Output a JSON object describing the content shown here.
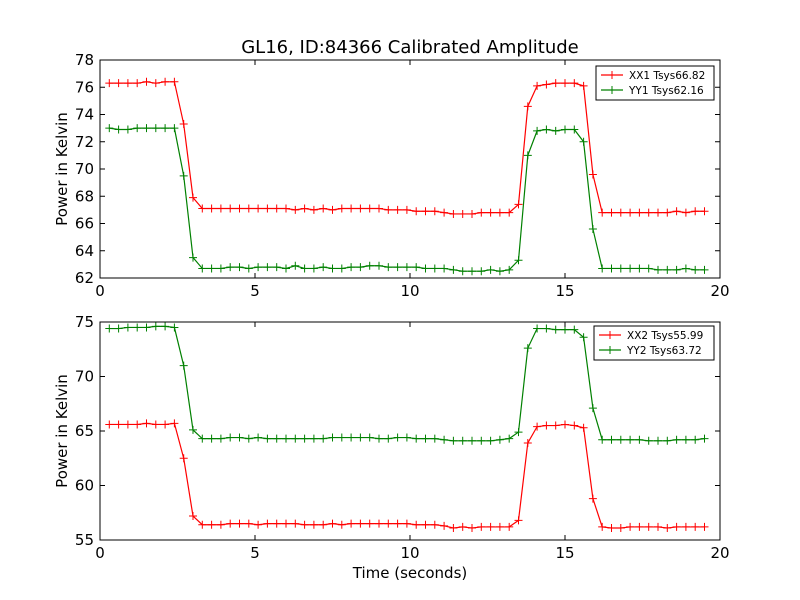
{
  "figure": {
    "title": "GL16, ID:84366 Calibrated Amplitude",
    "xlabel": "Time (seconds)"
  },
  "chart_data": [
    {
      "type": "line",
      "title": "GL16, ID:84366 Calibrated Amplitude",
      "xlabel": "",
      "ylabel": "Power in Kelvin",
      "xlim": [
        0,
        20
      ],
      "ylim": [
        62,
        78
      ],
      "xticks": [
        0,
        5,
        10,
        15,
        20
      ],
      "yticks": [
        62,
        64,
        66,
        68,
        70,
        72,
        74,
        76,
        78
      ],
      "legend_position": "top-right",
      "grid": false,
      "series": [
        {
          "name": "XX1 Tsys66.82",
          "color": "#ff0000",
          "x": [
            0.3,
            0.6,
            0.9,
            1.2,
            1.5,
            1.8,
            2.1,
            2.4,
            2.7,
            3.0,
            3.3,
            3.6,
            3.9,
            4.2,
            4.5,
            4.8,
            5.1,
            5.4,
            5.7,
            6.0,
            6.3,
            6.6,
            6.9,
            7.2,
            7.5,
            7.8,
            8.1,
            8.4,
            8.7,
            9.0,
            9.3,
            9.6,
            9.9,
            10.2,
            10.5,
            10.8,
            11.1,
            11.4,
            11.7,
            12.0,
            12.3,
            12.6,
            12.9,
            13.2,
            13.5,
            13.8,
            14.1,
            14.4,
            14.7,
            15.0,
            15.3,
            15.6,
            15.9,
            16.2,
            16.5,
            16.8,
            17.1,
            17.4,
            17.7,
            18.0,
            18.3,
            18.6,
            18.9,
            19.2,
            19.5
          ],
          "values": [
            76.3,
            76.3,
            76.3,
            76.3,
            76.4,
            76.3,
            76.4,
            76.4,
            73.3,
            67.9,
            67.1,
            67.1,
            67.1,
            67.1,
            67.1,
            67.1,
            67.1,
            67.1,
            67.1,
            67.1,
            67.0,
            67.1,
            67.0,
            67.1,
            67.0,
            67.1,
            67.1,
            67.1,
            67.1,
            67.1,
            67.0,
            67.0,
            67.0,
            66.9,
            66.9,
            66.9,
            66.8,
            66.7,
            66.7,
            66.7,
            66.8,
            66.8,
            66.8,
            66.8,
            67.4,
            74.6,
            76.1,
            76.2,
            76.3,
            76.3,
            76.3,
            76.1,
            69.6,
            66.8,
            66.8,
            66.8,
            66.8,
            66.8,
            66.8,
            66.8,
            66.8,
            66.9,
            66.8,
            66.9,
            66.9
          ]
        },
        {
          "name": "YY1 Tsys62.16",
          "color": "#008000",
          "x": [
            0.3,
            0.6,
            0.9,
            1.2,
            1.5,
            1.8,
            2.1,
            2.4,
            2.7,
            3.0,
            3.3,
            3.6,
            3.9,
            4.2,
            4.5,
            4.8,
            5.1,
            5.4,
            5.7,
            6.0,
            6.3,
            6.6,
            6.9,
            7.2,
            7.5,
            7.8,
            8.1,
            8.4,
            8.7,
            9.0,
            9.3,
            9.6,
            9.9,
            10.2,
            10.5,
            10.8,
            11.1,
            11.4,
            11.7,
            12.0,
            12.3,
            12.6,
            12.9,
            13.2,
            13.5,
            13.8,
            14.1,
            14.4,
            14.7,
            15.0,
            15.3,
            15.6,
            15.9,
            16.2,
            16.5,
            16.8,
            17.1,
            17.4,
            17.7,
            18.0,
            18.3,
            18.6,
            18.9,
            19.2,
            19.5
          ],
          "values": [
            73.0,
            72.9,
            72.9,
            73.0,
            73.0,
            73.0,
            73.0,
            73.0,
            69.5,
            63.5,
            62.7,
            62.7,
            62.7,
            62.8,
            62.8,
            62.7,
            62.8,
            62.8,
            62.8,
            62.7,
            62.9,
            62.7,
            62.7,
            62.8,
            62.7,
            62.7,
            62.8,
            62.8,
            62.9,
            62.9,
            62.8,
            62.8,
            62.8,
            62.8,
            62.7,
            62.7,
            62.7,
            62.6,
            62.5,
            62.5,
            62.5,
            62.6,
            62.5,
            62.6,
            63.3,
            71.0,
            72.8,
            72.9,
            72.8,
            72.9,
            72.9,
            72.0,
            65.6,
            62.7,
            62.7,
            62.7,
            62.7,
            62.7,
            62.7,
            62.6,
            62.6,
            62.6,
            62.7,
            62.6,
            62.6
          ]
        }
      ]
    },
    {
      "type": "line",
      "title": "",
      "xlabel": "Time (seconds)",
      "ylabel": "Power in Kelvin",
      "xlim": [
        0,
        20
      ],
      "ylim": [
        55,
        75
      ],
      "xticks": [
        0,
        5,
        10,
        15,
        20
      ],
      "yticks": [
        55,
        60,
        65,
        70,
        75
      ],
      "legend_position": "top-right",
      "grid": false,
      "series": [
        {
          "name": "XX2 Tsys55.99",
          "color": "#ff0000",
          "x": [
            0.3,
            0.6,
            0.9,
            1.2,
            1.5,
            1.8,
            2.1,
            2.4,
            2.7,
            3.0,
            3.3,
            3.6,
            3.9,
            4.2,
            4.5,
            4.8,
            5.1,
            5.4,
            5.7,
            6.0,
            6.3,
            6.6,
            6.9,
            7.2,
            7.5,
            7.8,
            8.1,
            8.4,
            8.7,
            9.0,
            9.3,
            9.6,
            9.9,
            10.2,
            10.5,
            10.8,
            11.1,
            11.4,
            11.7,
            12.0,
            12.3,
            12.6,
            12.9,
            13.2,
            13.5,
            13.8,
            14.1,
            14.4,
            14.7,
            15.0,
            15.3,
            15.6,
            15.9,
            16.2,
            16.5,
            16.8,
            17.1,
            17.4,
            17.7,
            18.0,
            18.3,
            18.6,
            18.9,
            19.2,
            19.5
          ],
          "values": [
            65.6,
            65.6,
            65.6,
            65.6,
            65.7,
            65.6,
            65.6,
            65.7,
            62.5,
            57.2,
            56.4,
            56.4,
            56.4,
            56.5,
            56.5,
            56.5,
            56.4,
            56.5,
            56.5,
            56.5,
            56.5,
            56.4,
            56.4,
            56.4,
            56.5,
            56.4,
            56.5,
            56.5,
            56.5,
            56.5,
            56.5,
            56.5,
            56.5,
            56.4,
            56.4,
            56.4,
            56.3,
            56.1,
            56.2,
            56.1,
            56.2,
            56.2,
            56.2,
            56.2,
            56.8,
            63.9,
            65.4,
            65.5,
            65.5,
            65.6,
            65.5,
            65.3,
            58.8,
            56.2,
            56.1,
            56.1,
            56.2,
            56.2,
            56.2,
            56.2,
            56.1,
            56.2,
            56.2,
            56.2,
            56.2
          ]
        },
        {
          "name": "YY2 Tsys63.72",
          "color": "#008000",
          "x": [
            0.3,
            0.6,
            0.9,
            1.2,
            1.5,
            1.8,
            2.1,
            2.4,
            2.7,
            3.0,
            3.3,
            3.6,
            3.9,
            4.2,
            4.5,
            4.8,
            5.1,
            5.4,
            5.7,
            6.0,
            6.3,
            6.6,
            6.9,
            7.2,
            7.5,
            7.8,
            8.1,
            8.4,
            8.7,
            9.0,
            9.3,
            9.6,
            9.9,
            10.2,
            10.5,
            10.8,
            11.1,
            11.4,
            11.7,
            12.0,
            12.3,
            12.6,
            12.9,
            13.2,
            13.5,
            13.8,
            14.1,
            14.4,
            14.7,
            15.0,
            15.3,
            15.6,
            15.9,
            16.2,
            16.5,
            16.8,
            17.1,
            17.4,
            17.7,
            18.0,
            18.3,
            18.6,
            18.9,
            19.2,
            19.5
          ],
          "values": [
            74.4,
            74.4,
            74.5,
            74.5,
            74.5,
            74.6,
            74.6,
            74.5,
            71.0,
            65.1,
            64.3,
            64.3,
            64.3,
            64.4,
            64.4,
            64.3,
            64.4,
            64.3,
            64.3,
            64.3,
            64.3,
            64.3,
            64.3,
            64.3,
            64.4,
            64.4,
            64.4,
            64.4,
            64.4,
            64.3,
            64.3,
            64.4,
            64.4,
            64.3,
            64.3,
            64.3,
            64.2,
            64.1,
            64.1,
            64.1,
            64.1,
            64.1,
            64.2,
            64.3,
            64.9,
            72.6,
            74.4,
            74.4,
            74.3,
            74.3,
            74.3,
            73.6,
            67.1,
            64.2,
            64.2,
            64.2,
            64.2,
            64.2,
            64.1,
            64.1,
            64.1,
            64.2,
            64.2,
            64.2,
            64.3
          ]
        }
      ]
    }
  ]
}
